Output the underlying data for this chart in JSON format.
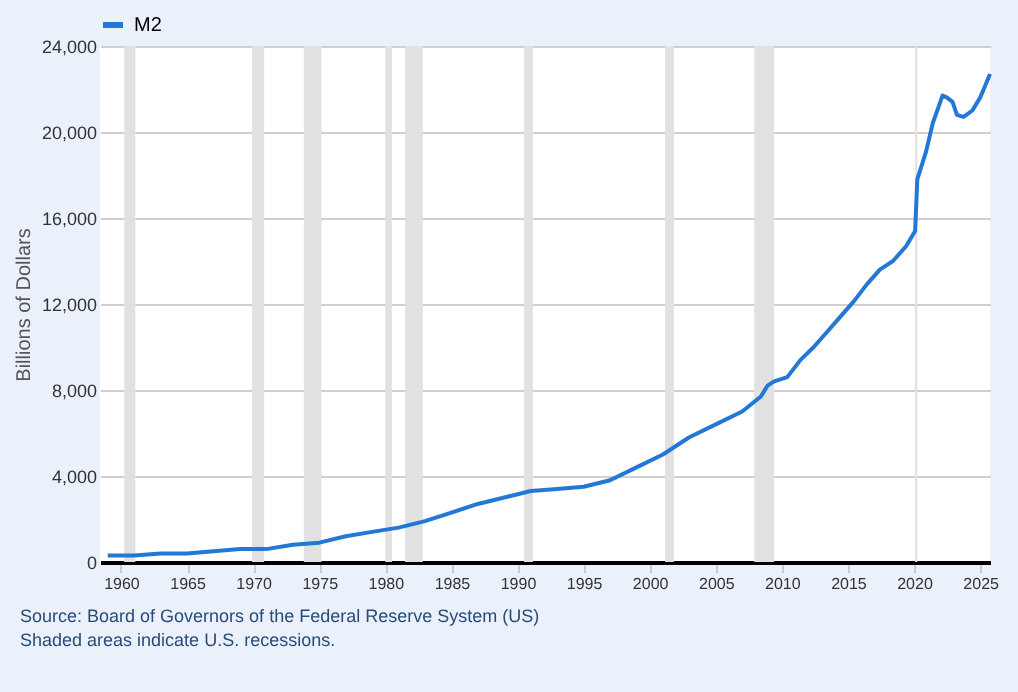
{
  "chart_data": {
    "type": "line",
    "ylabel": "Billions of Dollars",
    "annotations": [
      "Source: Board of Governors of the Federal Reserve System (US)",
      "Shaded areas indicate U.S. recessions."
    ],
    "x": [
      "1959-01",
      "1961-01",
      "1963-01",
      "1965-01",
      "1967-01",
      "1969-01",
      "1971-01",
      "1973-01",
      "1975-01",
      "1977-01",
      "1979-01",
      "1981-01",
      "1983-01",
      "1985-01",
      "1987-01",
      "1989-01",
      "1991-01",
      "1993-01",
      "1995-01",
      "1997-01",
      "1999-01",
      "2001-01",
      "2003-01",
      "2005-01",
      "2007-01",
      "2008-06",
      "2008-12",
      "2009-06",
      "2010-06",
      "2011-06",
      "2012-06",
      "2013-06",
      "2014-06",
      "2015-06",
      "2016-06",
      "2017-06",
      "2018-06",
      "2019-06",
      "2020-02",
      "2020-04",
      "2020-12",
      "2021-06",
      "2022-03",
      "2022-07",
      "2022-12",
      "2023-04",
      "2023-10",
      "2024-06",
      "2025-01",
      "2025-06",
      "2025-10"
    ],
    "series": [
      {
        "name": "M2",
        "color": "#2278d4",
        "values": [
          300,
          300,
          400,
          400,
          500,
          600,
          600,
          800,
          900,
          1200,
          1400,
          1600,
          1900,
          2300,
          2700,
          3000,
          3300,
          3400,
          3500,
          3800,
          4400,
          5000,
          5800,
          6400,
          7000,
          7700,
          8200,
          8400,
          8600,
          9400,
          10000,
          10700,
          11400,
          12100,
          12900,
          13600,
          14000,
          14700,
          15400,
          17800,
          19100,
          20400,
          21700,
          21600,
          21400,
          20800,
          20700,
          21000,
          21600,
          22200,
          22700
        ]
      }
    ],
    "xlim": [
      "1958-06",
      "2025-10"
    ],
    "xticks": [
      "1960",
      "1965",
      "1970",
      "1975",
      "1980",
      "1985",
      "1990",
      "1995",
      "2000",
      "2005",
      "2010",
      "2015",
      "2020",
      "2025"
    ],
    "ylim": [
      0,
      24000
    ],
    "yticks": [
      {
        "value": 0,
        "label": "0"
      },
      {
        "value": 4000,
        "label": "4,000"
      },
      {
        "value": 8000,
        "label": "8,000"
      },
      {
        "value": 12000,
        "label": "12,000"
      },
      {
        "value": 16000,
        "label": "16,000"
      },
      {
        "value": 20000,
        "label": "20,000"
      },
      {
        "value": 24000,
        "label": "24,000"
      }
    ],
    "grid": "y",
    "legend": "top left",
    "bands": [
      {
        "axis": "x",
        "from": "1960-04",
        "to": "1961-02",
        "color": "#e1e1e1"
      },
      {
        "axis": "x",
        "from": "1969-12",
        "to": "1970-11",
        "color": "#e1e1e1"
      },
      {
        "axis": "x",
        "from": "1973-11",
        "to": "1975-03",
        "color": "#e1e1e1"
      },
      {
        "axis": "x",
        "from": "1980-01",
        "to": "1980-07",
        "color": "#e1e1e1"
      },
      {
        "axis": "x",
        "from": "1981-07",
        "to": "1982-11",
        "color": "#e1e1e1"
      },
      {
        "axis": "x",
        "from": "1990-07",
        "to": "1991-03",
        "color": "#e1e1e1"
      },
      {
        "axis": "x",
        "from": "2001-03",
        "to": "2001-11",
        "color": "#e1e1e1"
      },
      {
        "axis": "x",
        "from": "2007-12",
        "to": "2009-06",
        "color": "#e1e1e1"
      },
      {
        "axis": "x",
        "from": "2020-02",
        "to": "2020-04",
        "color": "#e1e1e1"
      }
    ]
  }
}
